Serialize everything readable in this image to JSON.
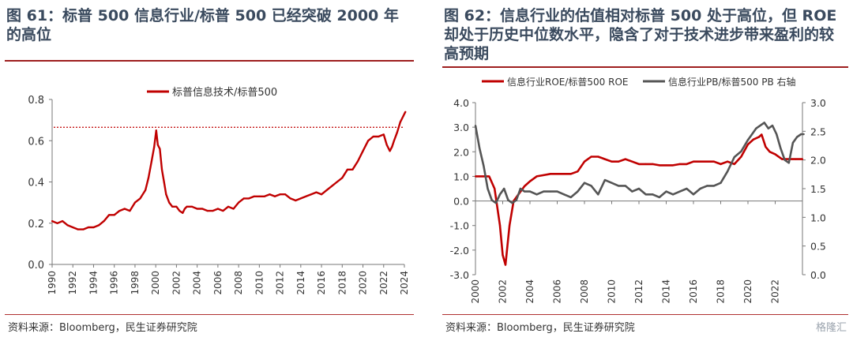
{
  "charts": {
    "left": {
      "figure_title": "图 61：标普 500 信息行业/标普 500 已经突破 2000 年的高位",
      "source": "资料来源：Bloomberg，民生证券研究院"
    },
    "right": {
      "figure_title": "图 62：信息行业的估值相对标普 500 处于高位，但 ROE 却处于历史中位数水平，隐含了对于技术进步带来盈利的较高预期",
      "source": "资料来源：Bloomberg，民生证券研究院"
    }
  },
  "watermark": "格隆汇",
  "chart_data": [
    {
      "type": "line",
      "title": "",
      "xlabel": "",
      "ylabel": "",
      "xlim": [
        1990,
        2024
      ],
      "ylim": [
        0.0,
        0.8
      ],
      "x_ticks": [
        "1990",
        "1992",
        "1994",
        "1996",
        "1998",
        "2000",
        "2002",
        "2004",
        "2006",
        "2008",
        "2010",
        "2012",
        "2014",
        "2016",
        "2018",
        "2020",
        "2022",
        "2024"
      ],
      "y_ticks": [
        "0.0",
        "0.2",
        "0.4",
        "0.6",
        "0.8"
      ],
      "legend_position": "top-center",
      "grid": false,
      "reference_line": {
        "y": 0.665,
        "style": "dotted",
        "color": "#c00000"
      },
      "series": [
        {
          "name": "标普信息技术/标普500",
          "color": "#c00000",
          "x": [
            1990.0,
            1990.5,
            1991.0,
            1991.5,
            1992.0,
            1992.5,
            1993.0,
            1993.5,
            1994.0,
            1994.5,
            1995.0,
            1995.5,
            1996.0,
            1996.5,
            1997.0,
            1997.5,
            1998.0,
            1998.5,
            1999.0,
            1999.3,
            1999.6,
            1999.85,
            2000.05,
            2000.2,
            2000.4,
            2000.6,
            2000.8,
            2001.0,
            2001.3,
            2001.6,
            2002.0,
            2002.3,
            2002.6,
            2002.8,
            2003.0,
            2003.5,
            2004.0,
            2004.5,
            2005.0,
            2005.5,
            2006.0,
            2006.5,
            2007.0,
            2007.5,
            2008.0,
            2008.5,
            2009.0,
            2009.5,
            2010.0,
            2010.5,
            2011.0,
            2011.5,
            2012.0,
            2012.5,
            2013.0,
            2013.5,
            2014.0,
            2014.5,
            2015.0,
            2015.5,
            2016.0,
            2016.5,
            2017.0,
            2017.5,
            2018.0,
            2018.5,
            2019.0,
            2019.5,
            2020.0,
            2020.5,
            2021.0,
            2021.5,
            2022.0,
            2022.3,
            2022.6,
            2022.8,
            2023.0,
            2023.3,
            2023.6,
            2023.9,
            2024.1
          ],
          "values": [
            0.21,
            0.2,
            0.21,
            0.19,
            0.18,
            0.17,
            0.17,
            0.18,
            0.18,
            0.19,
            0.21,
            0.24,
            0.24,
            0.26,
            0.27,
            0.26,
            0.3,
            0.32,
            0.36,
            0.42,
            0.5,
            0.57,
            0.65,
            0.58,
            0.56,
            0.46,
            0.4,
            0.34,
            0.3,
            0.28,
            0.28,
            0.26,
            0.25,
            0.27,
            0.28,
            0.28,
            0.27,
            0.27,
            0.26,
            0.26,
            0.27,
            0.26,
            0.28,
            0.27,
            0.3,
            0.32,
            0.32,
            0.33,
            0.33,
            0.33,
            0.34,
            0.33,
            0.34,
            0.34,
            0.32,
            0.31,
            0.32,
            0.33,
            0.34,
            0.35,
            0.34,
            0.36,
            0.38,
            0.4,
            0.42,
            0.46,
            0.46,
            0.5,
            0.55,
            0.6,
            0.62,
            0.62,
            0.63,
            0.58,
            0.55,
            0.57,
            0.6,
            0.64,
            0.69,
            0.72,
            0.74
          ]
        }
      ]
    },
    {
      "type": "line",
      "title": "",
      "xlabel": "",
      "ylabel": "",
      "xlim": [
        2000,
        2024
      ],
      "ylim": [
        -3.0,
        4.0
      ],
      "y2lim": [
        0.0,
        3.0
      ],
      "x_ticks": [
        "2000",
        "2002",
        "2004",
        "2006",
        "2008",
        "2010",
        "2012",
        "2014",
        "2016",
        "2018",
        "2020",
        "2022"
      ],
      "y_ticks": [
        "-3.0",
        "-2.0",
        "-1.0",
        "0.0",
        "1.0",
        "2.0",
        "3.0",
        "4.0"
      ],
      "y2_ticks": [
        "0.0",
        "0.5",
        "1.0",
        "1.5",
        "2.0",
        "2.5",
        "3.0"
      ],
      "legend_position": "top",
      "grid": false,
      "series": [
        {
          "name": "信息行业ROE/标普500 ROE",
          "axis": "left",
          "color": "#c00000",
          "x": [
            2000.0,
            2000.5,
            2001.0,
            2001.4,
            2001.8,
            2002.0,
            2002.2,
            2002.5,
            2002.8,
            2003.2,
            2003.6,
            2004.0,
            2004.5,
            2005.0,
            2005.5,
            2006.0,
            2006.5,
            2007.0,
            2007.5,
            2008.0,
            2008.5,
            2009.0,
            2009.5,
            2010.0,
            2010.5,
            2011.0,
            2011.5,
            2012.0,
            2012.5,
            2013.0,
            2013.5,
            2014.0,
            2014.5,
            2015.0,
            2015.5,
            2016.0,
            2016.5,
            2017.0,
            2017.5,
            2018.0,
            2018.5,
            2019.0,
            2019.5,
            2020.0,
            2020.4,
            2020.8,
            2021.0,
            2021.3,
            2021.6,
            2022.0,
            2022.5,
            2023.0,
            2023.5,
            2024.0
          ],
          "values": [
            1.0,
            1.0,
            1.0,
            0.5,
            -1.0,
            -2.2,
            -2.6,
            -1.0,
            0.0,
            0.3,
            0.6,
            0.8,
            1.0,
            1.05,
            1.1,
            1.1,
            1.1,
            1.1,
            1.2,
            1.6,
            1.8,
            1.8,
            1.7,
            1.6,
            1.6,
            1.7,
            1.6,
            1.5,
            1.5,
            1.5,
            1.45,
            1.45,
            1.45,
            1.5,
            1.5,
            1.6,
            1.6,
            1.6,
            1.6,
            1.5,
            1.6,
            1.5,
            1.8,
            2.3,
            2.5,
            2.6,
            2.7,
            2.2,
            2.0,
            1.9,
            1.7,
            1.7,
            1.7,
            1.7
          ]
        },
        {
          "name": "信息行业PB/标普500 PB 右轴",
          "axis": "right",
          "color": "#555555",
          "x": [
            2000.0,
            2000.3,
            2000.6,
            2000.9,
            2001.2,
            2001.5,
            2001.8,
            2002.1,
            2002.4,
            2002.7,
            2003.0,
            2003.3,
            2003.6,
            2004.0,
            2004.5,
            2005.0,
            2005.5,
            2006.0,
            2006.5,
            2007.0,
            2007.5,
            2008.0,
            2008.5,
            2009.0,
            2009.5,
            2010.0,
            2010.5,
            2011.0,
            2011.5,
            2012.0,
            2012.5,
            2013.0,
            2013.5,
            2014.0,
            2014.5,
            2015.0,
            2015.5,
            2016.0,
            2016.5,
            2017.0,
            2017.5,
            2018.0,
            2018.5,
            2019.0,
            2019.5,
            2020.0,
            2020.3,
            2020.6,
            2020.9,
            2021.2,
            2021.5,
            2021.8,
            2022.1,
            2022.4,
            2022.7,
            2023.0,
            2023.3,
            2023.6,
            2023.9,
            2024.1
          ],
          "values": [
            2.6,
            2.2,
            1.9,
            1.5,
            1.3,
            1.25,
            1.4,
            1.5,
            1.3,
            1.25,
            1.3,
            1.5,
            1.45,
            1.45,
            1.4,
            1.45,
            1.45,
            1.45,
            1.4,
            1.35,
            1.45,
            1.6,
            1.55,
            1.4,
            1.65,
            1.6,
            1.55,
            1.55,
            1.45,
            1.5,
            1.4,
            1.4,
            1.35,
            1.45,
            1.4,
            1.45,
            1.5,
            1.4,
            1.5,
            1.55,
            1.55,
            1.6,
            1.8,
            2.05,
            2.15,
            2.35,
            2.45,
            2.55,
            2.6,
            2.65,
            2.55,
            2.6,
            2.45,
            2.2,
            2.0,
            1.95,
            2.3,
            2.4,
            2.45,
            2.45
          ]
        }
      ]
    }
  ]
}
